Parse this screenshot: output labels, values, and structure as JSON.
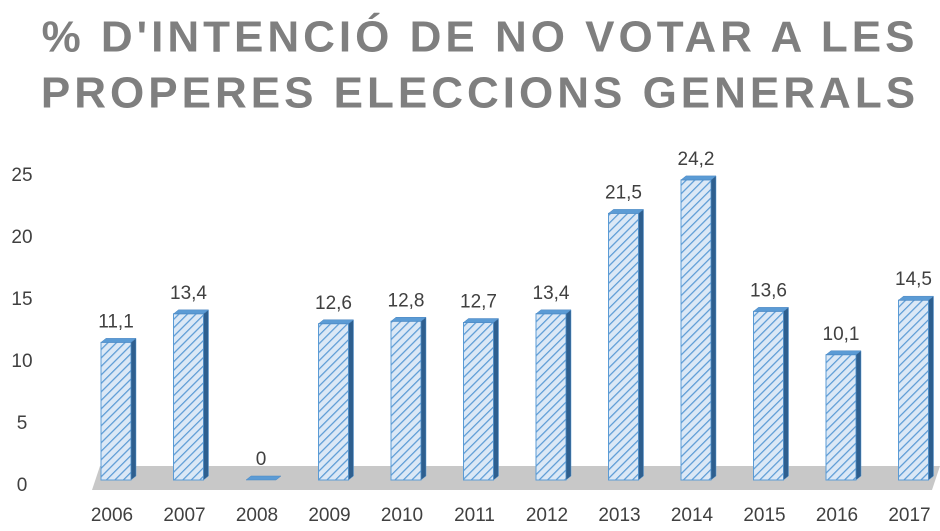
{
  "chart_data": {
    "type": "bar",
    "title": [
      "% D'INTENCIÓ DE NO VOTAR A LES",
      "PROPERES ELECCIONS GENERALS"
    ],
    "categories": [
      "2006",
      "2007",
      "2008",
      "2009",
      "2010",
      "2011",
      "2012",
      "2013",
      "2014",
      "2015",
      "2016",
      "2017"
    ],
    "values": [
      11.1,
      13.4,
      0,
      12.6,
      12.8,
      12.7,
      13.4,
      21.5,
      24.2,
      13.6,
      10.1,
      14.5
    ],
    "value_labels": [
      "11,1",
      "13,4",
      "0",
      "12,6",
      "12,8",
      "12,7",
      "13,4",
      "21,5",
      "24,2",
      "13,6",
      "10,1",
      "14,5"
    ],
    "color": "#5b9bd5",
    "ylim": [
      0,
      25
    ],
    "yticks": [
      0,
      5,
      10,
      15,
      20,
      25
    ],
    "grid": false
  }
}
